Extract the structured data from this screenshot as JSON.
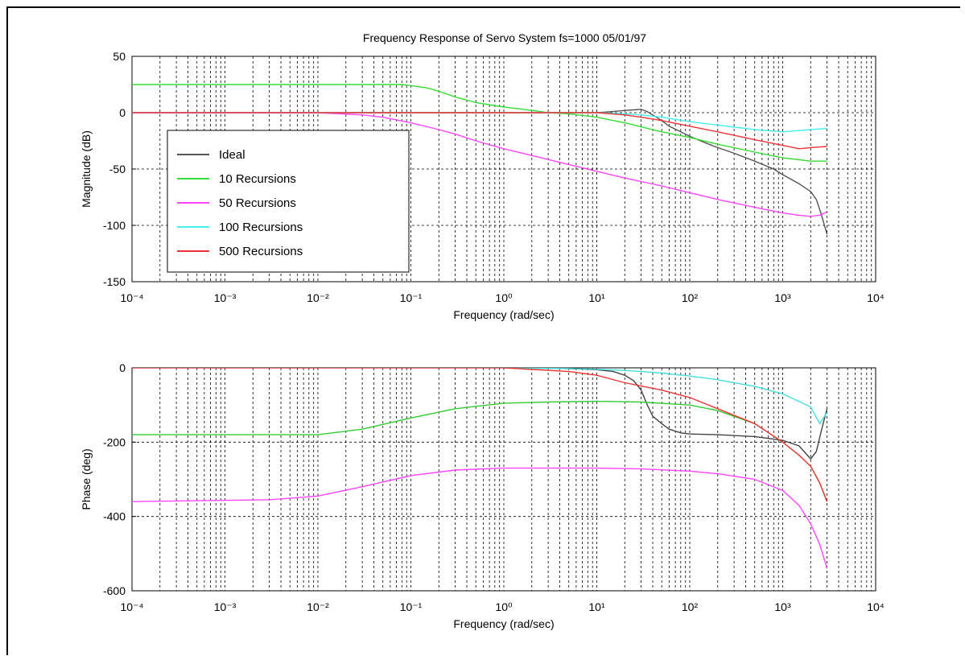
{
  "figure_title": "Frequency Response of Servo System fs=1000 05/01/97",
  "chart_data": [
    {
      "type": "line",
      "panel": "magnitude",
      "title": "Frequency Response of Servo System fs=1000 05/01/97",
      "xlabel": "Frequency (rad/sec)",
      "ylabel": "Magnitude (dB)",
      "xscale": "log",
      "xlim": [
        0.0001,
        10000
      ],
      "ylim": [
        -150,
        50
      ],
      "yticks": [
        50,
        0,
        -50,
        -100,
        -150
      ],
      "xtick_labels": [
        "10⁻⁴",
        "10⁻³",
        "10⁻²",
        "10⁻¹",
        "10⁰",
        "10¹",
        "10²",
        "10³",
        "10⁴"
      ],
      "grid": true,
      "legend_position": "lower-left",
      "series": [
        {
          "name": "Ideal",
          "color": "#555555",
          "x": [
            0.0001,
            1,
            5,
            10,
            15,
            20,
            25,
            30,
            35,
            40,
            50,
            60,
            80,
            100,
            150,
            200,
            300,
            500,
            800,
            1000,
            1500,
            2000,
            2300,
            2600,
            3000
          ],
          "y": [
            0,
            0,
            0,
            0,
            1,
            2,
            2.5,
            3,
            1,
            -2,
            -7,
            -12,
            -17,
            -21,
            -27,
            -31,
            -36,
            -43,
            -50,
            -55,
            -63,
            -70,
            -77,
            -90,
            -108
          ]
        },
        {
          "name": "10 Recursions",
          "color": "#33dd33",
          "x": [
            0.0001,
            0.08,
            0.1,
            0.15,
            0.2,
            0.3,
            0.5,
            1,
            2,
            3,
            5,
            10,
            20,
            50,
            100,
            200,
            500,
            1000,
            2000,
            3000
          ],
          "y": [
            25,
            25,
            24,
            22,
            19,
            14,
            9,
            5,
            2,
            0,
            -1,
            -4,
            -9,
            -17,
            -22,
            -28,
            -35,
            -40,
            -43,
            -43
          ]
        },
        {
          "name": "50 Recursions",
          "color": "#ff44ff",
          "x": [
            0.0001,
            0.01,
            0.03,
            0.05,
            0.1,
            0.2,
            0.3,
            0.5,
            1,
            2,
            5,
            10,
            20,
            50,
            100,
            200,
            500,
            1000,
            1500,
            2000,
            2500,
            3000
          ],
          "y": [
            0,
            0,
            -2,
            -4,
            -9,
            -15,
            -19,
            -25,
            -32,
            -38,
            -46,
            -52,
            -58,
            -65,
            -71,
            -77,
            -84,
            -89,
            -91,
            -92,
            -91,
            -88
          ]
        },
        {
          "name": "100 Recursions",
          "color": "#44eeee",
          "x": [
            0.0001,
            10,
            20,
            30,
            50,
            100,
            200,
            500,
            1000,
            2000,
            3000
          ],
          "y": [
            0,
            0,
            -1,
            -2,
            -4,
            -8,
            -11,
            -15,
            -17,
            -15,
            -14
          ]
        },
        {
          "name": "500 Recursions",
          "color": "#ee3333",
          "x": [
            0.0001,
            10,
            20,
            30,
            50,
            100,
            200,
            500,
            1000,
            1500,
            2000,
            3000
          ],
          "y": [
            0,
            0,
            -2,
            -4,
            -7,
            -12,
            -17,
            -24,
            -29,
            -32,
            -31,
            -30
          ]
        }
      ]
    },
    {
      "type": "line",
      "panel": "phase",
      "title": "",
      "xlabel": "Frequency (rad/sec)",
      "ylabel": "Phase (deg)",
      "xscale": "log",
      "xlim": [
        0.0001,
        10000
      ],
      "ylim": [
        -600,
        0
      ],
      "yticks": [
        0,
        -200,
        -400,
        -600
      ],
      "xtick_labels": [
        "10⁻⁴",
        "10⁻³",
        "10⁻²",
        "10⁻¹",
        "10⁰",
        "10¹",
        "10²",
        "10³",
        "10⁴"
      ],
      "grid": true,
      "series": [
        {
          "name": "Ideal",
          "color": "#444444",
          "x": [
            1,
            5,
            10,
            15,
            20,
            25,
            30,
            35,
            40,
            50,
            60,
            80,
            100,
            200,
            500,
            1000,
            1500,
            2000,
            2300,
            2600,
            3000
          ],
          "y": [
            0,
            -2,
            -5,
            -10,
            -20,
            -35,
            -60,
            -100,
            -130,
            -150,
            -165,
            -175,
            -178,
            -180,
            -185,
            -195,
            -210,
            -245,
            -225,
            -170,
            -110
          ]
        },
        {
          "name": "10 Recursions",
          "color": "#33cc33",
          "x": [
            0.0001,
            0.01,
            0.03,
            0.1,
            0.3,
            1,
            3,
            10,
            30,
            100,
            200,
            500,
            1000,
            1500,
            2000,
            2500,
            3000
          ],
          "y": [
            -180,
            -180,
            -165,
            -135,
            -110,
            -95,
            -92,
            -90,
            -92,
            -100,
            -115,
            -150,
            -200,
            -235,
            -265,
            -310,
            -360
          ]
        },
        {
          "name": "50 Recursions",
          "color": "#ff44ff",
          "x": [
            0.0001,
            0.003,
            0.01,
            0.03,
            0.1,
            0.3,
            1,
            3,
            10,
            30,
            100,
            200,
            500,
            1000,
            1500,
            2000,
            2500,
            3000
          ],
          "y": [
            -360,
            -355,
            -345,
            -320,
            -290,
            -275,
            -270,
            -270,
            -270,
            -272,
            -278,
            -285,
            -300,
            -330,
            -370,
            -420,
            -475,
            -540
          ]
        },
        {
          "name": "100 Recursions",
          "color": "#44dddd",
          "x": [
            1,
            5,
            10,
            20,
            30,
            50,
            100,
            200,
            500,
            1000,
            2000,
            2500,
            3000
          ],
          "y": [
            0,
            -2,
            -4,
            -7,
            -10,
            -14,
            -22,
            -32,
            -50,
            -70,
            -105,
            -150,
            -120
          ]
        },
        {
          "name": "500 Recursions",
          "color": "#ee3333",
          "x": [
            0.0001,
            0.5,
            1,
            5,
            10,
            20,
            50,
            100,
            200,
            500,
            1000,
            1500,
            2000,
            2500,
            3000
          ],
          "y": [
            0,
            0,
            0,
            -10,
            -20,
            -40,
            -60,
            -80,
            -110,
            -150,
            -200,
            -235,
            -265,
            -310,
            -360
          ]
        }
      ]
    }
  ]
}
